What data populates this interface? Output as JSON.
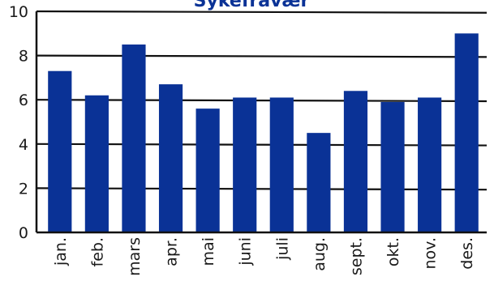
{
  "chart_data": {
    "type": "bar",
    "title": "Sykefravær",
    "xlabel": "",
    "ylabel": "",
    "categories": [
      "jan.",
      "feb.",
      "mars",
      "apr.",
      "mai",
      "juni",
      "juli",
      "aug.",
      "sept.",
      "okt.",
      "nov.",
      "des."
    ],
    "values": [
      7.3,
      6.2,
      8.5,
      6.7,
      5.6,
      6.1,
      6.1,
      4.5,
      6.4,
      5.9,
      6.1,
      9.0
    ],
    "yticks": [
      "0",
      "2",
      "4",
      "6",
      "8",
      "10"
    ],
    "ylim": [
      0,
      10
    ],
    "grid": true,
    "legend": "none",
    "colors": {
      "bar": "#0a3296",
      "grid": "#111111",
      "axis": "#111111",
      "title": "#0a3296"
    }
  }
}
